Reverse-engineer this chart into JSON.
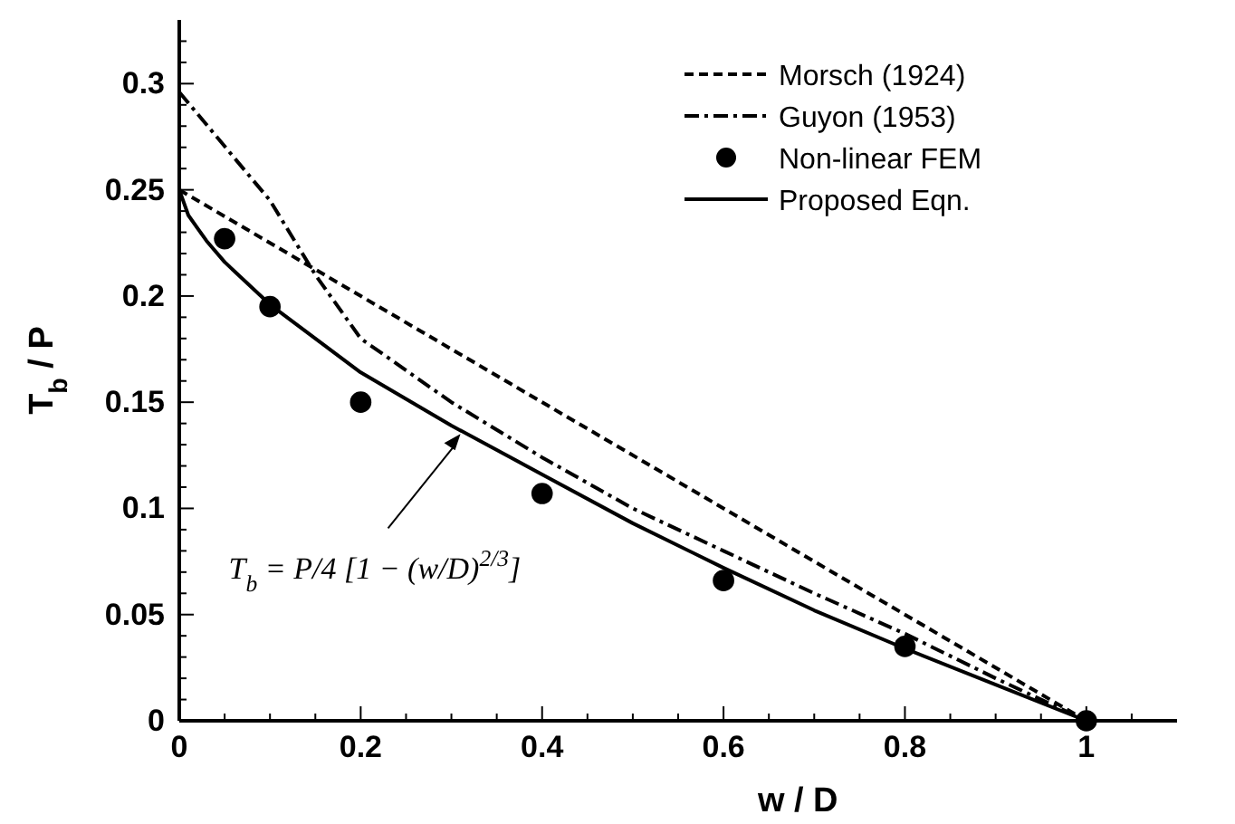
{
  "chart_data": {
    "type": "line",
    "xlabel": "w / D",
    "ylabel": "T$_{b}$ / P",
    "xlim": [
      0,
      1.1
    ],
    "ylim": [
      0,
      0.33
    ],
    "xticks": [
      0,
      {
        "value": 0.05,
        "label": null
      },
      {
        "value": 0.1,
        "label": null
      },
      {
        "value": 0.15,
        "label": null
      },
      0.2,
      {
        "value": 0.25,
        "label": null
      },
      {
        "value": 0.3,
        "label": null
      },
      {
        "value": 0.35,
        "label": null
      },
      0.4,
      {
        "value": 0.45,
        "label": null
      },
      {
        "value": 0.5,
        "label": null
      },
      {
        "value": 0.55,
        "label": null
      },
      0.6,
      {
        "value": 0.65,
        "label": null
      },
      {
        "value": 0.7,
        "label": null
      },
      {
        "value": 0.75,
        "label": null
      },
      0.8,
      {
        "value": 0.85,
        "label": null
      },
      {
        "value": 0.9,
        "label": null
      },
      {
        "value": 0.95,
        "label": null
      },
      1,
      {
        "value": 1.05,
        "label": null
      }
    ],
    "yticks": [
      0,
      {
        "value": 0.01,
        "label": null
      },
      {
        "value": 0.02,
        "label": null
      },
      {
        "value": 0.03,
        "label": null
      },
      {
        "value": 0.04,
        "label": null
      },
      0.05,
      {
        "value": 0.06,
        "label": null
      },
      {
        "value": 0.07,
        "label": null
      },
      {
        "value": 0.08,
        "label": null
      },
      {
        "value": 0.09,
        "label": null
      },
      0.1,
      {
        "value": 0.11,
        "label": null
      },
      {
        "value": 0.12,
        "label": null
      },
      {
        "value": 0.13,
        "label": null
      },
      {
        "value": 0.14,
        "label": null
      },
      0.15,
      {
        "value": 0.16,
        "label": null
      },
      {
        "value": 0.17,
        "label": null
      },
      {
        "value": 0.18,
        "label": null
      },
      {
        "value": 0.19,
        "label": null
      },
      0.2,
      {
        "value": 0.21,
        "label": null
      },
      {
        "value": 0.22,
        "label": null
      },
      {
        "value": 0.23,
        "label": null
      },
      {
        "value": 0.24,
        "label": null
      },
      0.25,
      {
        "value": 0.26,
        "label": null
      },
      {
        "value": 0.27,
        "label": null
      },
      {
        "value": 0.28,
        "label": null
      },
      {
        "value": 0.29,
        "label": null
      },
      0.3,
      {
        "value": 0.31,
        "label": null
      },
      {
        "value": 0.32,
        "label": null
      }
    ],
    "grid": false,
    "legend": "top right",
    "series": [
      {
        "name": "Morsch (1924)",
        "line_style": "dashed",
        "color": "#000000",
        "x": [
          0,
          1
        ],
        "values": [
          0.25,
          0
        ]
      },
      {
        "name": "Guyon (1953)",
        "line_style": "dashdot",
        "color": "#000000",
        "x": [
          0,
          0.1,
          0.15,
          0.2,
          0.3,
          0.4,
          0.5,
          0.6,
          0.7,
          0.8,
          0.9,
          1
        ],
        "values": [
          0.296,
          0.245,
          0.21,
          0.18,
          0.15,
          0.124,
          0.1,
          0.08,
          0.06,
          0.041,
          0.02,
          0
        ]
      },
      {
        "name": "Non-linear FEM",
        "type": "scatter",
        "marker": "circle",
        "color": "#000000",
        "x": [
          0.05,
          0.1,
          0.2,
          0.4,
          0.6,
          0.8,
          1
        ],
        "values": [
          0.227,
          0.195,
          0.15,
          0.107,
          0.066,
          0.035,
          0
        ]
      },
      {
        "name": "Proposed Eqn.",
        "line_style": "solid",
        "color": "#000000",
        "x": [
          0,
          0.01,
          0.02,
          0.03,
          0.05,
          0.1,
          0.2,
          0.3,
          0.4,
          0.5,
          0.6,
          0.7,
          0.8,
          0.9,
          1
        ],
        "values": [
          0.25,
          0.238,
          0.232,
          0.226,
          0.216,
          0.196,
          0.164,
          0.139,
          0.116,
          0.093,
          0.072,
          0.052,
          0.034,
          0.017,
          0
        ]
      }
    ],
    "annotations": [
      {
        "text": "T$_{b}$ = P/4 [1 − (w/D)$^{2/3}$]",
        "x": 0.31,
        "y": 0.135
      }
    ]
  }
}
